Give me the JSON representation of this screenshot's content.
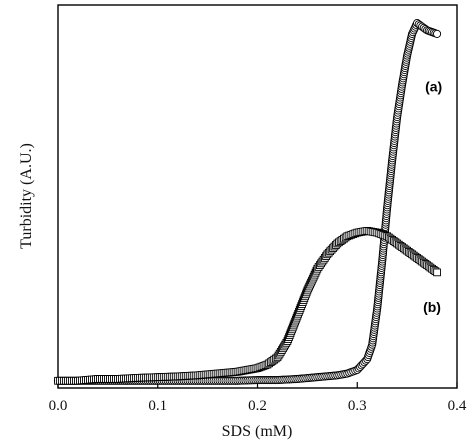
{
  "chart_data": {
    "type": "scatter",
    "xlabel": "SDS (mM)",
    "ylabel": "Turbidity (A.U.)",
    "xlim": [
      0.0,
      0.4
    ],
    "ylim": [
      0,
      1.06
    ],
    "xticks": [
      "0.0",
      "0.1",
      "0.2",
      "0.3",
      "0.4"
    ],
    "grid": false,
    "legend": "none",
    "series": [
      {
        "name": "(a)",
        "marker": "circle",
        "x": [
          0.0,
          0.02,
          0.04,
          0.06,
          0.08,
          0.1,
          0.12,
          0.14,
          0.16,
          0.18,
          0.2,
          0.22,
          0.24,
          0.26,
          0.28,
          0.29,
          0.3,
          0.31,
          0.315,
          0.32,
          0.325,
          0.33,
          0.335,
          0.34,
          0.345,
          0.35,
          0.355,
          0.36,
          0.365,
          0.37,
          0.375,
          0.38
        ],
        "y": [
          0.02,
          0.02,
          0.02,
          0.02,
          0.02,
          0.02,
          0.02,
          0.02,
          0.02,
          0.02,
          0.022,
          0.022,
          0.025,
          0.03,
          0.035,
          0.04,
          0.05,
          0.08,
          0.12,
          0.22,
          0.35,
          0.5,
          0.63,
          0.75,
          0.84,
          0.92,
          0.98,
          1.01,
          1.0,
          0.99,
          0.985,
          0.98
        ]
      },
      {
        "name": "(b)",
        "marker": "square",
        "x": [
          0.0,
          0.02,
          0.04,
          0.06,
          0.08,
          0.1,
          0.12,
          0.14,
          0.16,
          0.18,
          0.19,
          0.2,
          0.21,
          0.22,
          0.23,
          0.24,
          0.25,
          0.26,
          0.27,
          0.28,
          0.29,
          0.3,
          0.31,
          0.32,
          0.33,
          0.34,
          0.35,
          0.36,
          0.37,
          0.38
        ],
        "y": [
          0.02,
          0.02,
          0.025,
          0.025,
          0.028,
          0.03,
          0.032,
          0.035,
          0.04,
          0.045,
          0.05,
          0.055,
          0.065,
          0.085,
          0.13,
          0.2,
          0.27,
          0.33,
          0.37,
          0.4,
          0.42,
          0.43,
          0.435,
          0.43,
          0.42,
          0.4,
          0.38,
          0.36,
          0.34,
          0.32
        ]
      }
    ]
  }
}
